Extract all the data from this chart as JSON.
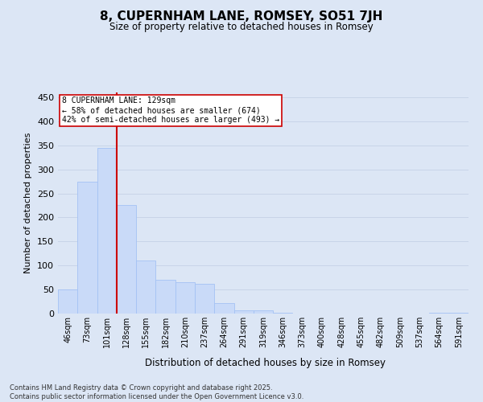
{
  "title": "8, CUPERNHAM LANE, ROMSEY, SO51 7JH",
  "subtitle": "Size of property relative to detached houses in Romsey",
  "xlabel": "Distribution of detached houses by size in Romsey",
  "ylabel": "Number of detached properties",
  "footnote": "Contains HM Land Registry data © Crown copyright and database right 2025.\nContains public sector information licensed under the Open Government Licence v3.0.",
  "categories": [
    "46sqm",
    "73sqm",
    "101sqm",
    "128sqm",
    "155sqm",
    "182sqm",
    "210sqm",
    "237sqm",
    "264sqm",
    "291sqm",
    "319sqm",
    "346sqm",
    "373sqm",
    "400sqm",
    "428sqm",
    "455sqm",
    "482sqm",
    "509sqm",
    "537sqm",
    "564sqm",
    "591sqm"
  ],
  "values": [
    50,
    275,
    345,
    225,
    110,
    70,
    65,
    62,
    22,
    6,
    6,
    1,
    0,
    0,
    0,
    0,
    0,
    0,
    0,
    1,
    2
  ],
  "bar_color": "#c9daf8",
  "bar_edge_color": "#a4c2f4",
  "property_label": "8 CUPERNHAM LANE: 129sqm",
  "pct_smaller": 58,
  "n_smaller": 674,
  "pct_larger_semi": 42,
  "n_larger_semi": 493,
  "vline_x_index": 2.5,
  "annotation_box_color": "#ffffff",
  "annotation_box_edge_color": "#cc0000",
  "vline_color": "#cc0000",
  "grid_color": "#c8d4e8",
  "bg_color": "#dce6f5",
  "ylim": [
    0,
    460
  ],
  "yticks": [
    0,
    50,
    100,
    150,
    200,
    250,
    300,
    350,
    400,
    450
  ]
}
